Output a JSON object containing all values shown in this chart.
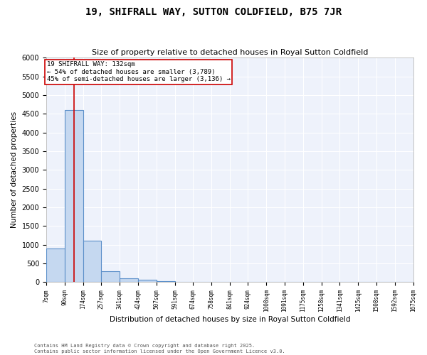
{
  "title": "19, SHIFRALL WAY, SUTTON COLDFIELD, B75 7JR",
  "subtitle": "Size of property relative to detached houses in Royal Sutton Coldfield",
  "xlabel": "Distribution of detached houses by size in Royal Sutton Coldfield",
  "ylabel": "Number of detached properties",
  "bar_color": "#c5d8f0",
  "bar_edge_color": "#5b8fc9",
  "background_color": "#eef2fb",
  "grid_color": "#ffffff",
  "bin_edges": [
    7,
    90,
    174,
    257,
    341,
    424,
    507,
    591,
    674,
    758,
    841,
    924,
    1008,
    1091,
    1175,
    1258,
    1341,
    1425,
    1508,
    1592,
    1675
  ],
  "bar_heights": [
    900,
    4600,
    1100,
    300,
    100,
    60,
    20,
    8,
    3,
    2,
    1,
    1,
    0,
    0,
    0,
    0,
    0,
    0,
    0,
    0
  ],
  "property_size": 132,
  "annotation_line1": "19 SHIFRALL WAY: 132sqm",
  "annotation_line2": "← 54% of detached houses are smaller (3,789)",
  "annotation_line3": "45% of semi-detached houses are larger (3,136) →",
  "annotation_box_color": "#cc0000",
  "ylim": [
    0,
    6000
  ],
  "yticks": [
    0,
    500,
    1000,
    1500,
    2000,
    2500,
    3000,
    3500,
    4000,
    4500,
    5000,
    5500,
    6000
  ],
  "footer": "Contains HM Land Registry data © Crown copyright and database right 2025.\nContains public sector information licensed under the Open Government Licence v3.0.",
  "tick_labels": [
    "7sqm",
    "90sqm",
    "174sqm",
    "257sqm",
    "341sqm",
    "424sqm",
    "507sqm",
    "591sqm",
    "674sqm",
    "758sqm",
    "841sqm",
    "924sqm",
    "1008sqm",
    "1091sqm",
    "1175sqm",
    "1258sqm",
    "1341sqm",
    "1425sqm",
    "1508sqm",
    "1592sqm",
    "1675sqm"
  ],
  "figwidth": 6.0,
  "figheight": 5.0,
  "dpi": 100
}
